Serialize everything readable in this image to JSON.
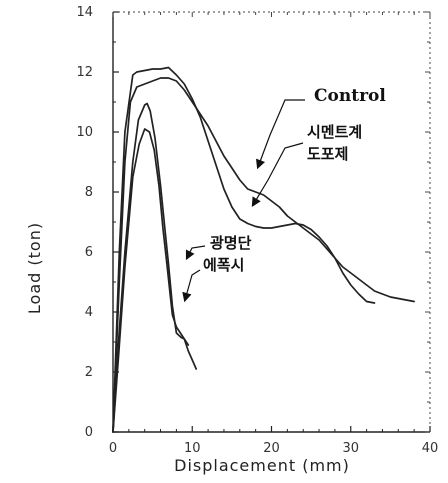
{
  "chart_data": {
    "type": "line",
    "xlabel": "Displacement  (mm)",
    "ylabel": "Load  (ton)",
    "xlim": [
      0,
      40
    ],
    "ylim": [
      0,
      14
    ],
    "xticks": [
      "0",
      "10",
      "20",
      "30",
      "40"
    ],
    "yticks": [
      "0",
      "2",
      "4",
      "6",
      "8",
      "10",
      "12",
      "14"
    ],
    "grid": false,
    "series": [
      {
        "name": "Control",
        "color": "#222222",
        "x": [
          0,
          0.8,
          1.5,
          2.2,
          3,
          4,
          5,
          6,
          7,
          8,
          9,
          10,
          11,
          12,
          13,
          14,
          15,
          16,
          17,
          18,
          19,
          20,
          21,
          22,
          23,
          24,
          25,
          26,
          27,
          28,
          29,
          30,
          31,
          32,
          33,
          34,
          35,
          36,
          37,
          38
        ],
        "y": [
          0,
          5,
          9,
          11,
          11.5,
          11.6,
          11.7,
          11.8,
          11.8,
          11.7,
          11.4,
          11.0,
          10.6,
          10.2,
          9.7,
          9.2,
          8.8,
          8.4,
          8.1,
          8.0,
          7.9,
          7.7,
          7.5,
          7.2,
          7.0,
          6.8,
          6.6,
          6.4,
          6.1,
          5.8,
          5.5,
          5.3,
          5.1,
          4.9,
          4.7,
          4.6,
          4.5,
          4.45,
          4.4,
          4.35
        ]
      },
      {
        "name": "시멘트계 도포제",
        "color": "#222222",
        "x": [
          0,
          0.8,
          1.5,
          2.5,
          3,
          4,
          5,
          6,
          7,
          8,
          9,
          10,
          11,
          12,
          13,
          14,
          15,
          16,
          17,
          18,
          19,
          20,
          21,
          22,
          23,
          24,
          25,
          26,
          27,
          28,
          29,
          30,
          31,
          32,
          33
        ],
        "y": [
          0,
          6,
          10,
          11.9,
          12.0,
          12.05,
          12.1,
          12.1,
          12.15,
          11.9,
          11.6,
          11.1,
          10.5,
          9.7,
          8.9,
          8.1,
          7.5,
          7.1,
          6.95,
          6.85,
          6.8,
          6.8,
          6.85,
          6.9,
          6.95,
          6.9,
          6.75,
          6.5,
          6.2,
          5.8,
          5.3,
          4.9,
          4.6,
          4.35,
          4.3
        ]
      },
      {
        "name": "광명단 에폭시",
        "color": "#222222",
        "x": [
          0,
          0.7,
          1.5,
          2.5,
          3.2,
          4,
          4.3,
          4.7,
          5.3,
          6,
          6.5,
          7,
          7.5,
          8,
          8.6,
          9,
          9.5,
          10,
          10.5
        ],
        "y": [
          0,
          3,
          6,
          9,
          10.4,
          10.9,
          10.95,
          10.7,
          9.8,
          8.2,
          6.9,
          5.6,
          4.2,
          3.3,
          3.15,
          3.1,
          2.7,
          2.4,
          2.1
        ]
      },
      {
        "name": "광명단 에폭시 (2)",
        "color": "#222222",
        "x": [
          0,
          0.7,
          1.5,
          2.5,
          3.3,
          4,
          4.6,
          5.2,
          5.8,
          6.3,
          6.8,
          7.2,
          7.5,
          8,
          8.5,
          9,
          9.5
        ],
        "y": [
          0,
          2.5,
          5.5,
          8.5,
          9.6,
          10.1,
          10.0,
          9.4,
          8.2,
          6.8,
          5.6,
          4.6,
          3.9,
          3.5,
          3.3,
          3.1,
          2.9
        ]
      }
    ],
    "annotations": [
      {
        "text": "Control",
        "target": "Control"
      },
      {
        "text_lines": [
          "시멘트계",
          "도포제"
        ],
        "target": "시멘트계 도포제"
      },
      {
        "text_lines": [
          "광명단",
          "에폭시"
        ],
        "target": "광명단 에폭시"
      }
    ]
  }
}
